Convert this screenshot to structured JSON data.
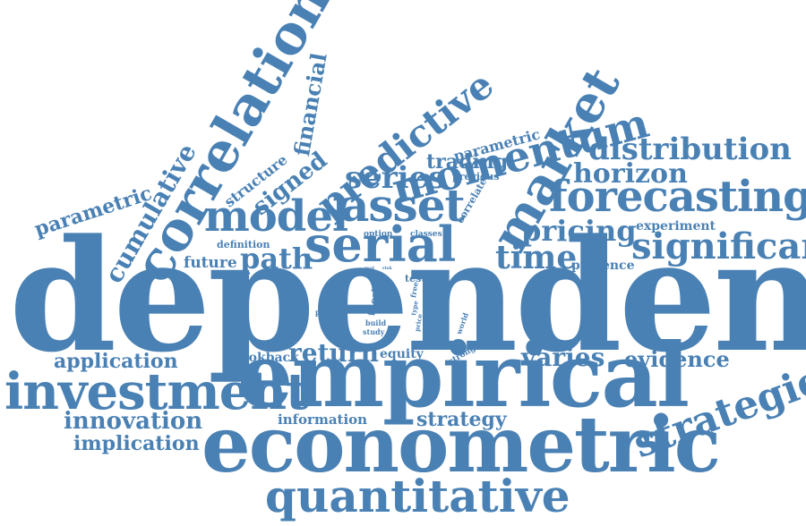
{
  "color": "#4a81b4",
  "words": {
    "dependence": "dependence",
    "empirical": "empirical",
    "econometric": "econometric",
    "quantitative": "quantitative",
    "investment": "investment",
    "serial": "serial",
    "correlation": "correlation",
    "momentum": "momentum",
    "market": "market",
    "forecasting": "forecasting",
    "predictive": "predictive",
    "asset": "asset",
    "model": "model",
    "strategies": "strategies",
    "significant": "significant",
    "distribution": "distribution",
    "horizon": "horizon",
    "pricing": "pricing",
    "series": "series",
    "time": "time",
    "return": "return",
    "path": "path",
    "cumulative": "cumulative",
    "parametric_left": "parametric",
    "parametric_top": "parametric",
    "signed": "signed",
    "financial": "financial",
    "structure": "structure",
    "trading": "trading",
    "previous": "previous",
    "correlate": "correlate",
    "application": "application",
    "innovation": "innovation",
    "implication": "implication",
    "varies": "varies",
    "evidence": "evidence",
    "strategy": "strategy",
    "information": "information",
    "lookback": "lookback",
    "equity": "equity",
    "future": "future",
    "definition": "definition",
    "presence": "presence",
    "experiment": "experiment",
    "option": "option",
    "classes": "classes",
    "test": "test",
    "thesis": "thesis",
    "concept": "concept",
    "build": "build",
    "study": "study",
    "profit": "profit",
    "strong": "strong",
    "world": "world",
    "free": "free",
    "type": "type",
    "price": "price",
    "real": "real",
    "risk": "risk"
  }
}
